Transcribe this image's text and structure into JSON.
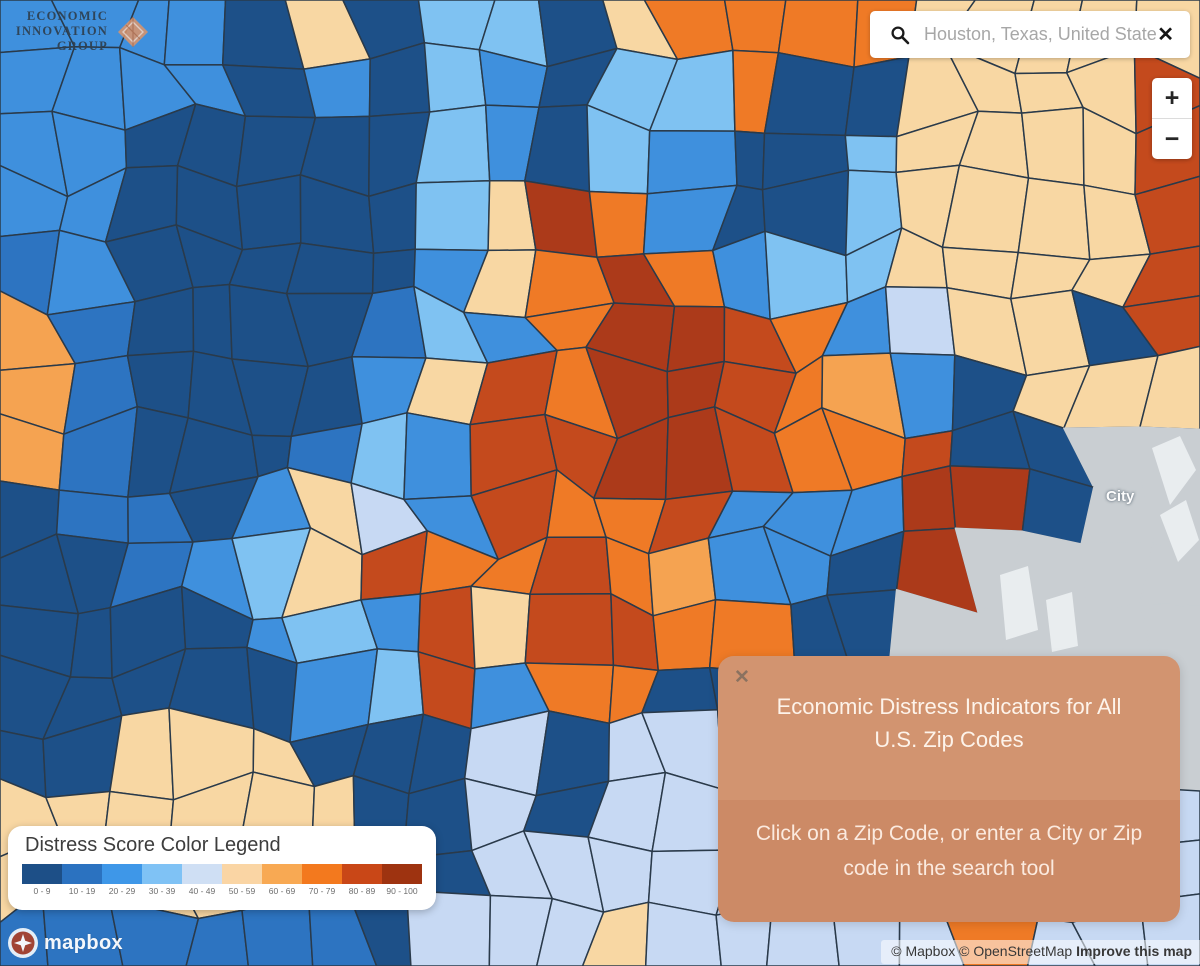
{
  "logo": {
    "line1": "ECONOMIC",
    "line2": "INNOVATION",
    "line3": "GROUP",
    "diamond_color": "#dd9368"
  },
  "search": {
    "value": "Houston, Texas, United States",
    "clear_glyph": "✕"
  },
  "zoom": {
    "in": "+",
    "out": "−"
  },
  "legend": {
    "title": "Distress Score Color Legend",
    "buckets": [
      {
        "range": "0 - 9",
        "color": "#1d4f87"
      },
      {
        "range": "10 - 19",
        "color": "#2b72c0"
      },
      {
        "range": "20 - 29",
        "color": "#3e97e8"
      },
      {
        "range": "30 - 39",
        "color": "#7fc2f5"
      },
      {
        "range": "40 - 49",
        "color": "#cfdff4"
      },
      {
        "range": "50 - 59",
        "color": "#fad5a4"
      },
      {
        "range": "60 - 69",
        "color": "#f8a953"
      },
      {
        "range": "70 - 79",
        "color": "#f3791e"
      },
      {
        "range": "80 - 89",
        "color": "#c94717"
      },
      {
        "range": "90 - 100",
        "color": "#9e3310"
      }
    ]
  },
  "popup": {
    "close_glyph": "✕",
    "title": "Economic Distress Indicators for All U.S. Zip Codes",
    "body": "Click on a Zip Code, or enter a City or Zip code in the search tool",
    "header_bg": "#d29470",
    "body_bg": "#cc8a66"
  },
  "map": {
    "city_label": "City",
    "stroke": "#2a3a4a",
    "patch_color": "#eef2f4",
    "cols": 20,
    "rows": 16,
    "palette": {
      "A": "#1d5088",
      "B": "#2d74c1",
      "C": "#3f90dd",
      "D": "#7fc2f2",
      "E": "#c7d9f3",
      "F": "#f8d7a3",
      "G": "#f5a351",
      "H": "#ef7a26",
      "I": "#c44a1d",
      "J": "#ac3a1a",
      "X": "#c9ced2"
    },
    "grid": [
      "CCCCAFADDAFHHHHFFFFF",
      "CCCCACADCADDHAAFFFFI",
      "CCAAAAADCADCAADFFFFI",
      "CCAAAAADFJHCAADFFFFI",
      "BCAAAAACFHJHCDDFFFFI",
      "GBAAAABDCHJJIHCEFFAI",
      "GBAAAACFIHJJIHGCAFFF",
      "GBAAABDCIIJJIHHIAAXX",
      "ABBACFECIHHICCCJJAXX",
      "AABCDFIHHIHGCCAJXXXX",
      "AAAACDCIFIIHHAAXXXXX",
      "AAAAACDICHHAAEEXXXXX",
      "AAFFFAAAEAEEEEEEEXXX",
      "FFFFFFAAEAEEEEEEEEEE",
      "FFFFFBBAEEEEEEEEEEEE",
      "BBBBBBAEEEFEEEEEHEEE"
    ],
    "white_patches": [
      "1152,448 1180,436 1196,470 1170,505",
      "1160,515 1186,500 1199,540 1178,562",
      "1000,575 1028,566 1038,630 1006,640",
      "1046,600 1072,592 1078,646 1052,652"
    ]
  },
  "attribution": {
    "copyright": "© Mapbox © OpenStreetMap",
    "link": "Improve this map"
  },
  "mapbox": {
    "wordmark": "mapbox"
  }
}
